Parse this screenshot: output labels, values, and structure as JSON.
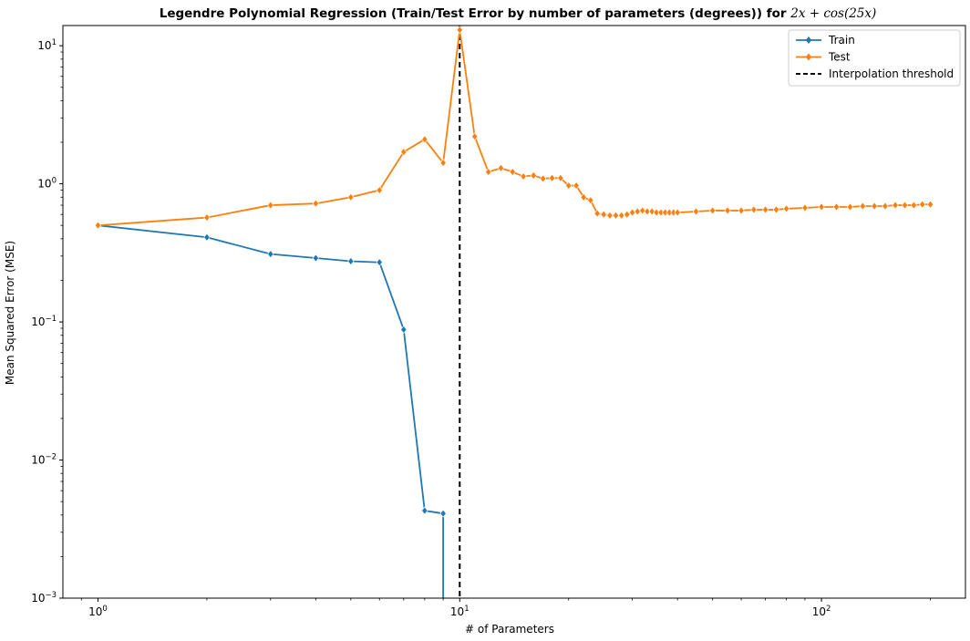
{
  "chart_data": {
    "type": "line",
    "title": "Legendre Polynomial Regression (Train/Test Error by number of parameters (degrees)) for",
    "title_math": "2x + cos(25x)",
    "xlabel": "# of Parameters",
    "ylabel": "Mean Squared Error (MSE)",
    "xscale": "log",
    "yscale": "log",
    "xlim": [
      0.8,
      250
    ],
    "ylim": [
      0.001,
      14
    ],
    "x_tick_labels": [
      {
        "value": 1,
        "base": "10",
        "exp": "0"
      },
      {
        "value": 10,
        "base": "10",
        "exp": "1"
      },
      {
        "value": 100,
        "base": "10",
        "exp": "2"
      }
    ],
    "y_tick_labels": [
      {
        "value": 0.001,
        "base": "10",
        "exp": "−3"
      },
      {
        "value": 0.01,
        "base": "10",
        "exp": "−2"
      },
      {
        "value": 0.1,
        "base": "10",
        "exp": "−1"
      },
      {
        "value": 1,
        "base": "10",
        "exp": "0"
      },
      {
        "value": 10,
        "base": "10",
        "exp": "1"
      }
    ],
    "grid": false,
    "legend_position": "top-right",
    "threshold": {
      "name": "Interpolation threshold",
      "x": 10,
      "color": "#000000",
      "style": "dashed"
    },
    "series": [
      {
        "name": "Train",
        "color": "#1f77b4",
        "marker": "diamond",
        "x": [
          1,
          2,
          3,
          4,
          5,
          6,
          7,
          8,
          9,
          9.0001
        ],
        "y": [
          0.5,
          0.41,
          0.31,
          0.29,
          0.275,
          0.27,
          0.088,
          0.0043,
          0.0041,
          0.0008
        ]
      },
      {
        "name": "Test",
        "color": "#ff7f0e",
        "marker": "diamond",
        "x": [
          1,
          2,
          3,
          4,
          5,
          6,
          7,
          8,
          9,
          10,
          11,
          12,
          13,
          14,
          15,
          16,
          17,
          18,
          19,
          20,
          21,
          22,
          23,
          24,
          25,
          26,
          27,
          28,
          29,
          30,
          31,
          32,
          33,
          34,
          35,
          36,
          37,
          38,
          39,
          40,
          45,
          50,
          55,
          60,
          65,
          70,
          75,
          80,
          90,
          100,
          110,
          120,
          130,
          140,
          150,
          160,
          170,
          180,
          190,
          200
        ],
        "y": [
          0.5,
          0.57,
          0.7,
          0.72,
          0.8,
          0.9,
          1.7,
          2.1,
          1.42,
          13,
          2.2,
          1.22,
          1.3,
          1.22,
          1.13,
          1.15,
          1.09,
          1.1,
          1.1,
          0.97,
          0.97,
          0.8,
          0.76,
          0.61,
          0.6,
          0.59,
          0.59,
          0.59,
          0.6,
          0.62,
          0.63,
          0.64,
          0.63,
          0.63,
          0.62,
          0.62,
          0.62,
          0.62,
          0.62,
          0.62,
          0.63,
          0.64,
          0.64,
          0.64,
          0.65,
          0.65,
          0.65,
          0.66,
          0.67,
          0.68,
          0.68,
          0.68,
          0.69,
          0.69,
          0.69,
          0.7,
          0.7,
          0.7,
          0.71,
          0.71
        ]
      }
    ]
  }
}
